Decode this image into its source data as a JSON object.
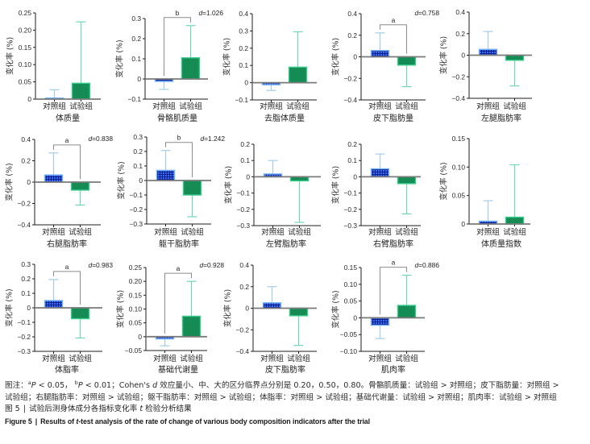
{
  "colors": {
    "control_fill": "#3a6af0",
    "control_grid": "#0c1f8e",
    "control_border": "#74b0f4",
    "control_error": "#a6cde6",
    "experimental_fill": "#1ba463",
    "experimental_checker": "#0c7444",
    "experimental_border": "#3ccb8e",
    "experimental_error": "#72d5b4",
    "zero_line": "#7a7a7a",
    "bracket": "#8c8c8c"
  },
  "chart_data": [
    {
      "type": "bar",
      "title": "体质量",
      "ylabel": "变化率 (%)",
      "categories": [
        "对照组",
        "试验组"
      ],
      "values": [
        0.003,
        0.046
      ],
      "error_bar_end": [
        0.027,
        0.224
      ],
      "ylim": [
        0,
        0.25
      ],
      "yticks": [
        0,
        0.05,
        0.1,
        0.15,
        0.2,
        0.25
      ],
      "ytick_labels": [
        "0",
        "0.05",
        "0.10",
        "0.15",
        "0.20",
        "0.25"
      ],
      "significance": null,
      "effect_size": null
    },
    {
      "type": "bar",
      "title": "骨骼肌质量",
      "ylabel": "变化率 (%)",
      "categories": [
        "对照组",
        "试验组"
      ],
      "values": [
        -0.012,
        0.105
      ],
      "error_bar_end": [
        -0.052,
        0.265
      ],
      "ylim": [
        -0.1,
        0.3
      ],
      "yticks": [
        -0.1,
        0,
        0.1,
        0.2,
        0.3
      ],
      "ytick_labels": [
        "−0.1",
        "0",
        "0.1",
        "0.2",
        "0.3"
      ],
      "significance": {
        "label": "b",
        "groups": [
          "对照组",
          "试验组"
        ]
      },
      "effect_size": {
        "symbol": "d",
        "value": "=1.026"
      }
    },
    {
      "type": "bar",
      "title": "去脂体质量",
      "ylabel": "变化率 (%)",
      "categories": [
        "对照组",
        "试验组"
      ],
      "values": [
        -0.012,
        0.09
      ],
      "error_bar_end": [
        -0.045,
        0.295
      ],
      "ylim": [
        -0.1,
        0.4
      ],
      "yticks": [
        -0.1,
        0,
        0.1,
        0.2,
        0.3,
        0.4
      ],
      "ytick_labels": [
        "−0.1",
        "0",
        "0.1",
        "0.2",
        "0.3",
        "0.4"
      ],
      "significance": null,
      "effect_size": null
    },
    {
      "type": "bar",
      "title": "皮下脂肪量",
      "ylabel": "变化率 (%)",
      "categories": [
        "对照组",
        "试验组"
      ],
      "values": [
        0.058,
        -0.077
      ],
      "error_bar_end": [
        0.222,
        -0.277
      ],
      "ylim": [
        -0.4,
        0.4
      ],
      "yticks": [
        -0.4,
        -0.2,
        0,
        0.2,
        0.4
      ],
      "ytick_labels": [
        "−0.4",
        "−0.2",
        "0",
        "0.2",
        "0.4"
      ],
      "significance": {
        "label": "a",
        "groups": [
          "对照组",
          "试验组"
        ]
      },
      "effect_size": {
        "symbol": "d",
        "value": "=0.758"
      }
    },
    {
      "type": "bar",
      "title": "左腿脂肪率",
      "ylabel": "变化率 (%)",
      "categories": [
        "对照组",
        "试验组"
      ],
      "values": [
        0.054,
        -0.047
      ],
      "error_bar_end": [
        0.22,
        -0.285
      ],
      "ylim": [
        -0.4,
        0.4
      ],
      "yticks": [
        -0.4,
        -0.2,
        0,
        0.2,
        0.4
      ],
      "ytick_labels": [
        "−0.4",
        "−0.2",
        "0",
        "0.2",
        "0.4"
      ],
      "significance": null,
      "effect_size": null
    },
    {
      "type": "bar",
      "title": "右腿脂肪率",
      "ylabel": "变化率 (%)",
      "categories": [
        "对照组",
        "试验组"
      ],
      "values": [
        0.067,
        -0.075
      ],
      "error_bar_end": [
        0.273,
        -0.215
      ],
      "ylim": [
        -0.4,
        0.4
      ],
      "yticks": [
        -0.4,
        -0.2,
        0,
        0.2,
        0.4
      ],
      "ytick_labels": [
        "−0.4",
        "−0.2",
        "0",
        "0.2",
        "0.4"
      ],
      "significance": {
        "label": "a",
        "groups": [
          "对照组",
          "试验组"
        ]
      },
      "effect_size": {
        "symbol": "d",
        "value": "=0.838"
      }
    },
    {
      "type": "bar",
      "title": "躯干脂肪率",
      "ylabel": "变化率 (%)",
      "categories": [
        "对照组",
        "试验组"
      ],
      "values": [
        0.07,
        -0.1
      ],
      "error_bar_end": [
        0.207,
        -0.25
      ],
      "ylim": [
        -0.3,
        0.3
      ],
      "yticks": [
        -0.3,
        -0.2,
        -0.1,
        0,
        0.1,
        0.2,
        0.3
      ],
      "ytick_labels": [
        "−0.3",
        "−0.2",
        "−0.1",
        "0",
        "0.1",
        "0.2",
        "0.3"
      ],
      "significance": {
        "label": "b",
        "groups": [
          "对照组",
          "试验组"
        ]
      },
      "effect_size": {
        "symbol": "d",
        "value": "=1.242"
      }
    },
    {
      "type": "bar",
      "title": "左臂脂肪率",
      "ylabel": "变化率 (%)",
      "categories": [
        "对照组",
        "试验组"
      ],
      "values": [
        0.017,
        -0.025
      ],
      "error_bar_end": [
        0.1,
        -0.28
      ],
      "ylim": [
        -0.3,
        0.2
      ],
      "yticks": [
        -0.3,
        -0.2,
        -0.1,
        0,
        0.1,
        0.2
      ],
      "ytick_labels": [
        "−0.3",
        "−0.2",
        "−0.1",
        "0",
        "0.1",
        "0.2"
      ],
      "significance": null,
      "effect_size": null
    },
    {
      "type": "bar",
      "title": "右臂脂肪率",
      "ylabel": "变化率 (%)",
      "categories": [
        "对照组",
        "试验组"
      ],
      "values": [
        0.049,
        -0.042
      ],
      "error_bar_end": [
        0.14,
        -0.228
      ],
      "ylim": [
        -0.3,
        0.2
      ],
      "yticks": [
        -0.3,
        -0.2,
        -0.1,
        0,
        0.1,
        0.2
      ],
      "ytick_labels": [
        "−0.3",
        "−0.2",
        "−0.1",
        "0",
        "0.1",
        "0.2"
      ],
      "significance": null,
      "effect_size": null
    },
    {
      "type": "bar",
      "title": "体质量指数",
      "ylabel": "变化率 (%)",
      "categories": [
        "对照组",
        "试验组"
      ],
      "values": [
        0.005,
        0.012
      ],
      "error_bar_end": [
        0.041,
        0.104
      ],
      "ylim": [
        0,
        0.15
      ],
      "yticks": [
        0,
        0.05,
        0.1,
        0.15
      ],
      "ytick_labels": [
        "0",
        "0.05",
        "0.10",
        "0.15"
      ],
      "significance": null,
      "effect_size": null
    },
    {
      "type": "bar",
      "title": "体脂率",
      "ylabel": "变化率 (%)",
      "categories": [
        "对照组",
        "试验组"
      ],
      "values": [
        0.05,
        -0.075
      ],
      "error_bar_end": [
        0.195,
        -0.208
      ],
      "ylim": [
        -0.3,
        0.3
      ],
      "yticks": [
        -0.3,
        -0.2,
        -0.1,
        0,
        0.1,
        0.2,
        0.3
      ],
      "ytick_labels": [
        "−0.3",
        "−0.2",
        "−0.1",
        "0",
        "0.1",
        "0.2",
        "0.3"
      ],
      "significance": {
        "label": "a",
        "groups": [
          "对照组",
          "试验组"
        ]
      },
      "effect_size": {
        "symbol": "d",
        "value": "=0.983"
      }
    },
    {
      "type": "bar",
      "title": "基础代谢量",
      "ylabel": "变化率 (%)",
      "categories": [
        "对照组",
        "试验组"
      ],
      "values": [
        -0.008,
        0.074
      ],
      "error_bar_end": [
        -0.033,
        0.2
      ],
      "ylim": [
        -0.05,
        0.25
      ],
      "yticks": [
        -0.05,
        0,
        0.05,
        0.1,
        0.15,
        0.2,
        0.25
      ],
      "ytick_labels": [
        "−0.05",
        "0",
        "0.05",
        "0.10",
        "0.15",
        "0.20",
        "0.25"
      ],
      "significance": {
        "label": "a",
        "groups": [
          "对照组",
          "试验组"
        ]
      },
      "effect_size": {
        "symbol": "d",
        "value": "=0.928"
      }
    },
    {
      "type": "bar",
      "title": "皮下脂肪率",
      "ylabel": "变化率 (%)",
      "categories": [
        "对照组",
        "试验组"
      ],
      "values": [
        0.05,
        -0.07
      ],
      "error_bar_end": [
        0.2,
        -0.345
      ],
      "ylim": [
        -0.4,
        0.4
      ],
      "yticks": [
        -0.4,
        -0.2,
        0,
        0.2,
        0.4
      ],
      "ytick_labels": [
        "−0.4",
        "−0.2",
        "0",
        "0.2",
        "0.4"
      ],
      "significance": null,
      "effect_size": null
    },
    {
      "type": "bar",
      "title": "肌肉率",
      "ylabel": "变化率 (%)",
      "categories": [
        "对照组",
        "试验组"
      ],
      "values": [
        -0.022,
        0.037
      ],
      "error_bar_end": [
        -0.062,
        0.127
      ],
      "ylim": [
        -0.1,
        0.15
      ],
      "yticks": [
        -0.1,
        -0.05,
        0,
        0.05,
        0.1,
        0.15
      ],
      "ytick_labels": [
        "−0.10",
        "−0.05",
        "0",
        "0.05",
        "0.10",
        "0.15"
      ],
      "significance": {
        "label": "a",
        "groups": [
          "对照组",
          "试验组"
        ]
      },
      "effect_size": {
        "symbol": "d",
        "value": "=0.886"
      }
    }
  ],
  "caption": {
    "note": {
      "prefix": "图注：",
      "sig_a": {
        "mark": "a",
        "symbol": "P",
        "text": " < 0.05，"
      },
      "sig_b": {
        "mark": "b",
        "symbol": "P",
        "text": " < 0.01；"
      },
      "cohen_prefix": "Cohen's ",
      "cohen_symbol": "d",
      "cohen_text": " 效应量小、中、大的区分临界点分别是 0.20，0.50，0.80。",
      "comparisons": "骨骼肌质量：试验组 > 对照组；皮下脂肪量：对照组 > 试验组；右腿脂肪率：对照组 > 试验组；躯干脂肪率：对照组 > 试验组；体脂率：对照组 > 试验组；基础代谢量：试验组 > 对照组；肌肉率：试验组 > 对照组"
    },
    "title_cn": {
      "label": "图 5",
      "separator": "|",
      "text_before": "试验后测身体成分各指标变化率 ",
      "t_symbol": "t",
      "text_after": " 检验分析结果"
    },
    "title_en": {
      "label": "Figure 5",
      "separator": "|",
      "text_before": "Results of ",
      "t_symbol": "t",
      "text_after": "-test analysis of the rate of change of various body composition indicators after the trial"
    }
  }
}
